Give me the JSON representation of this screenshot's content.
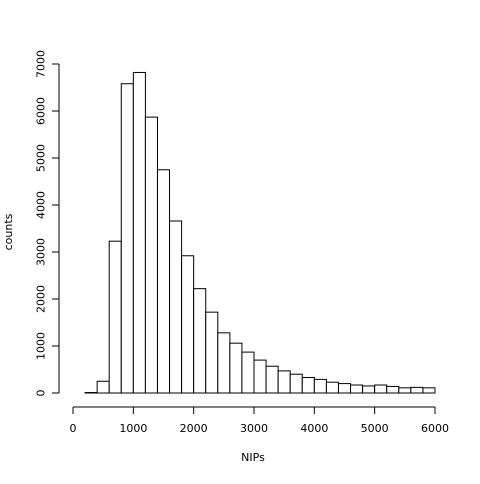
{
  "chart_data": {
    "type": "histogram",
    "title": "",
    "xlabel": "NIPs",
    "ylabel": "counts",
    "xlim": [
      0,
      6000
    ],
    "ylim": [
      0,
      7000
    ],
    "bin_width": 200,
    "bins": [
      {
        "start": 200,
        "end": 400,
        "count": 10
      },
      {
        "start": 400,
        "end": 600,
        "count": 250
      },
      {
        "start": 600,
        "end": 800,
        "count": 3230
      },
      {
        "start": 800,
        "end": 1000,
        "count": 6580
      },
      {
        "start": 1000,
        "end": 1200,
        "count": 6820
      },
      {
        "start": 1200,
        "end": 1400,
        "count": 5870
      },
      {
        "start": 1400,
        "end": 1600,
        "count": 4750
      },
      {
        "start": 1600,
        "end": 1800,
        "count": 3660
      },
      {
        "start": 1800,
        "end": 2000,
        "count": 2920
      },
      {
        "start": 2000,
        "end": 2200,
        "count": 2220
      },
      {
        "start": 2200,
        "end": 2400,
        "count": 1720
      },
      {
        "start": 2400,
        "end": 2600,
        "count": 1280
      },
      {
        "start": 2600,
        "end": 2800,
        "count": 1060
      },
      {
        "start": 2800,
        "end": 3000,
        "count": 870
      },
      {
        "start": 3000,
        "end": 3200,
        "count": 700
      },
      {
        "start": 3200,
        "end": 3400,
        "count": 570
      },
      {
        "start": 3400,
        "end": 3600,
        "count": 470
      },
      {
        "start": 3600,
        "end": 3800,
        "count": 400
      },
      {
        "start": 3800,
        "end": 4000,
        "count": 330
      },
      {
        "start": 4000,
        "end": 4200,
        "count": 290
      },
      {
        "start": 4200,
        "end": 4400,
        "count": 230
      },
      {
        "start": 4400,
        "end": 4600,
        "count": 200
      },
      {
        "start": 4600,
        "end": 4800,
        "count": 170
      },
      {
        "start": 4800,
        "end": 5000,
        "count": 150
      },
      {
        "start": 5000,
        "end": 5200,
        "count": 170
      },
      {
        "start": 5200,
        "end": 5400,
        "count": 140
      },
      {
        "start": 5400,
        "end": 5600,
        "count": 110
      },
      {
        "start": 5600,
        "end": 5800,
        "count": 120
      },
      {
        "start": 5800,
        "end": 6000,
        "count": 110
      }
    ],
    "x_ticks": [
      0,
      1000,
      2000,
      3000,
      4000,
      5000,
      6000
    ],
    "x_tick_labels": [
      "0",
      "1000",
      "2000",
      "3000",
      "4000",
      "5000",
      "6000"
    ],
    "y_ticks": [
      0,
      1000,
      2000,
      3000,
      4000,
      5000,
      6000,
      7000
    ],
    "y_tick_labels": [
      "0",
      "1000",
      "2000",
      "3000",
      "4000",
      "5000",
      "6000",
      "7000"
    ],
    "grid": false,
    "legend": "none",
    "colors": {
      "bar_fill": "#ffffff",
      "bar_stroke": "#000000",
      "axis": "#000000"
    }
  }
}
